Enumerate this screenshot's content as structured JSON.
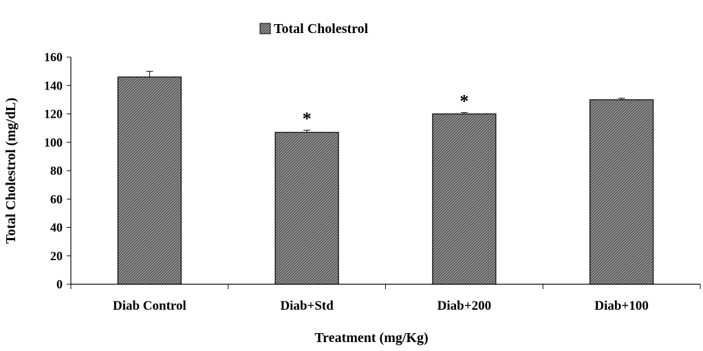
{
  "chart_data": {
    "type": "bar",
    "title": "",
    "xlabel": "Treatment (mg/Kg)",
    "ylabel": "Total Cholestrol (mg/dL)",
    "ylim": [
      0,
      160
    ],
    "yticks": [
      0,
      20,
      40,
      60,
      80,
      100,
      120,
      140,
      160
    ],
    "categories": [
      "Diab Control",
      "Diab+Std",
      "Diab+200",
      "Diab+100"
    ],
    "series": [
      {
        "name": "Total Cholestrol",
        "values": [
          146,
          107,
          120,
          130
        ],
        "errors": [
          4,
          1.5,
          1,
          1
        ],
        "significance": [
          "",
          "*",
          "*",
          ""
        ]
      }
    ],
    "legend_position": "top-center",
    "grid": false,
    "bar_fill": "#6e6e6e",
    "bar_stroke": "#000000"
  }
}
